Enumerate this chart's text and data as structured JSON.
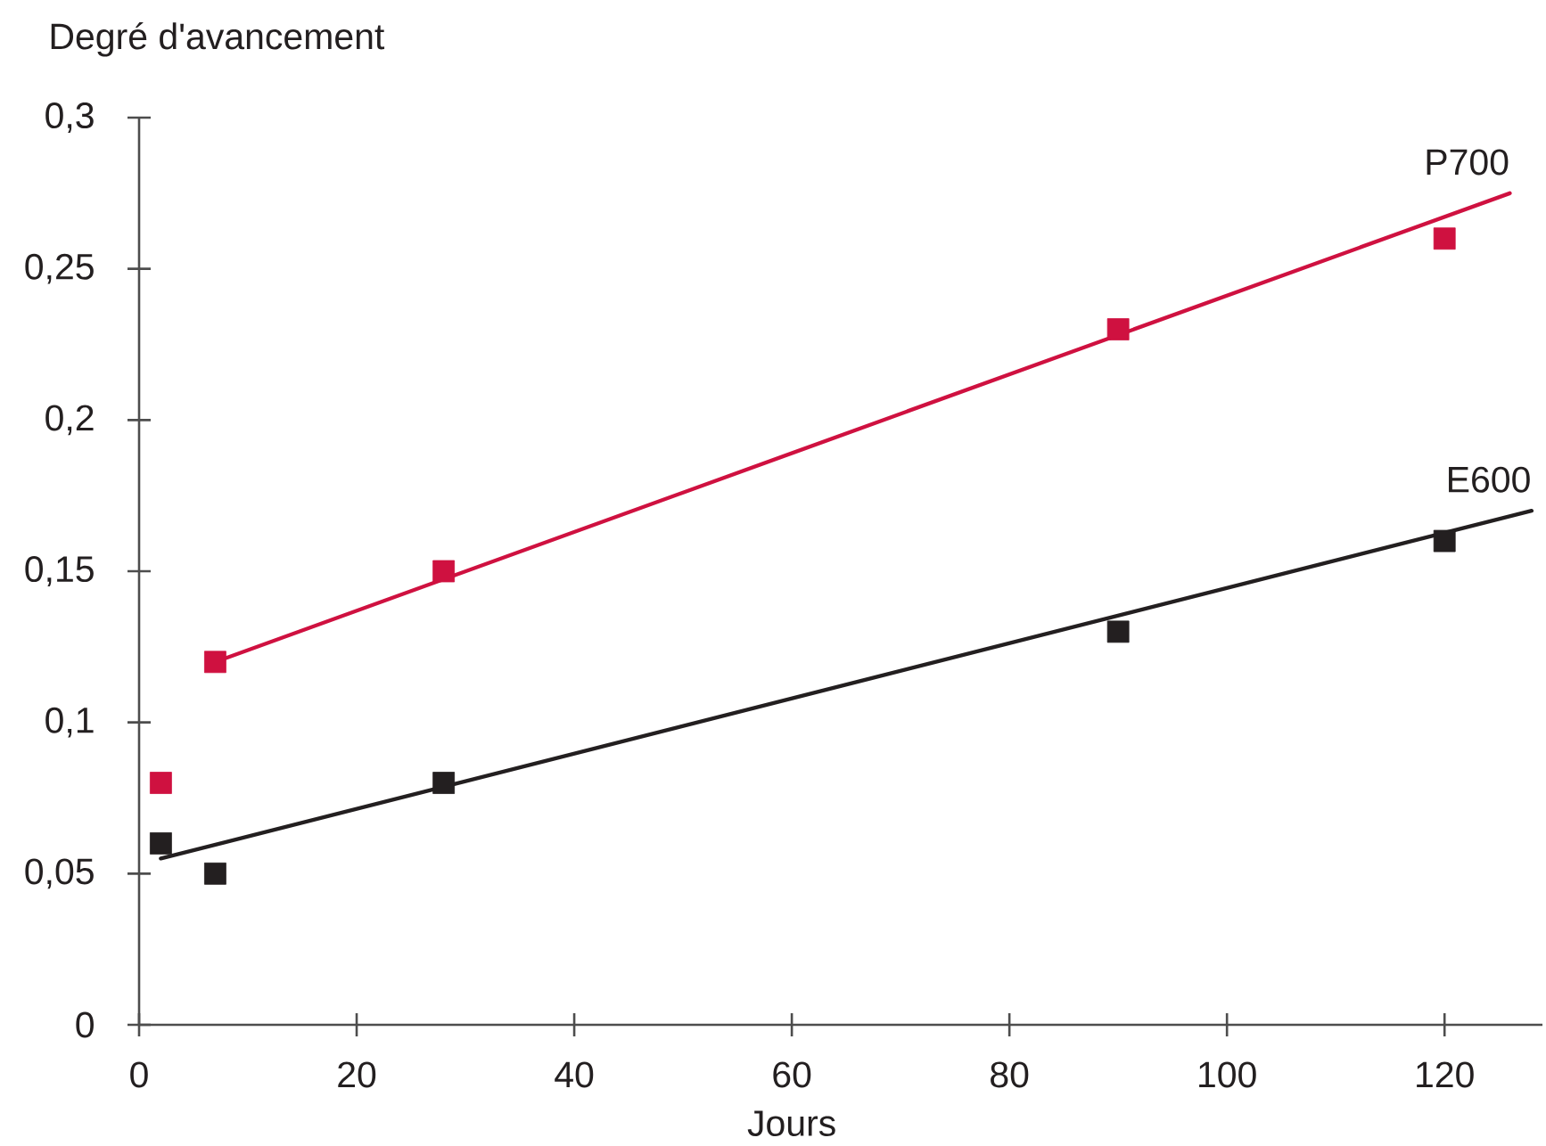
{
  "chart_data": {
    "type": "scatter",
    "xlabel": "Jours",
    "ylabel": "Degré d'avancement",
    "xlim": [
      0,
      129
    ],
    "ylim": [
      0,
      0.3
    ],
    "xticks": [
      0,
      20,
      40,
      60,
      80,
      100,
      120
    ],
    "yticks": [
      0,
      {
        "value": 0.05,
        "label": "0,05"
      },
      {
        "value": 0.1,
        "label": "0,1"
      },
      {
        "value": 0.15,
        "label": "0,15"
      },
      {
        "value": 0.2,
        "label": "0,2"
      },
      {
        "value": 0.25,
        "label": "0,25"
      },
      {
        "value": 0.3,
        "label": "0,3"
      }
    ],
    "marker": "square",
    "series": [
      {
        "name": "P700",
        "color": "#cf1140",
        "x": [
          2,
          7,
          28,
          90,
          120
        ],
        "values": [
          0.08,
          0.12,
          0.15,
          0.23,
          0.26
        ]
      },
      {
        "type": "line",
        "marker": "none",
        "color": "#cf1140",
        "x": [
          7,
          126
        ],
        "values": [
          0.12,
          0.275
        ]
      },
      {
        "name": "E600",
        "color": "#231f20",
        "x": [
          2,
          7,
          28,
          90,
          120
        ],
        "values": [
          0.06,
          0.05,
          0.08,
          0.13,
          0.16
        ]
      },
      {
        "type": "line",
        "marker": "none",
        "color": "#231f20",
        "x": [
          2,
          128
        ],
        "values": [
          0.055,
          0.17
        ]
      }
    ]
  }
}
